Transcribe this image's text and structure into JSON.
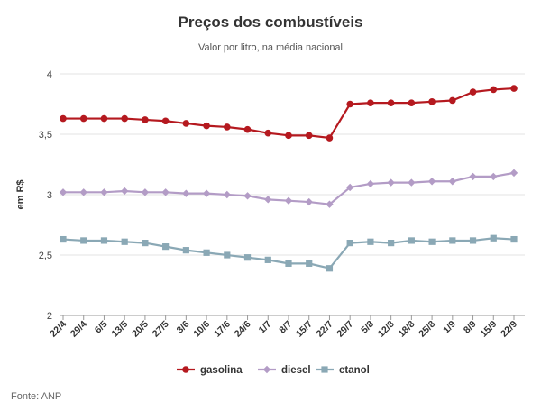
{
  "chart_data": {
    "type": "line",
    "title": "Preços dos combustíveis",
    "subtitle": "Valor por litro, na média nacional",
    "xlabel": "",
    "ylabel": "em R$",
    "ylim": [
      2,
      4
    ],
    "yticks": [
      "2",
      "2,5",
      "3",
      "3,5",
      "4"
    ],
    "ytick_values": [
      2,
      2.5,
      3,
      3.5,
      4
    ],
    "grid": true,
    "legend_position": "bottom",
    "categories": [
      "22/4",
      "29/4",
      "6/5",
      "13/5",
      "20/5",
      "27/5",
      "3/6",
      "10/6",
      "17/6",
      "24/6",
      "1/7",
      "8/7",
      "15/7",
      "22/7",
      "29/7",
      "5/8",
      "12/8",
      "18/8",
      "25/8",
      "1/9",
      "8/9",
      "15/9",
      "22/9"
    ],
    "series": [
      {
        "name": "gasolina",
        "color": "#b5191f",
        "marker": "circle",
        "values": [
          3.63,
          3.63,
          3.63,
          3.63,
          3.62,
          3.61,
          3.59,
          3.57,
          3.56,
          3.54,
          3.51,
          3.49,
          3.49,
          3.47,
          3.75,
          3.76,
          3.76,
          3.76,
          3.77,
          3.78,
          3.85,
          3.87,
          3.88
        ]
      },
      {
        "name": "diesel",
        "color": "#b39cc6",
        "marker": "diamond",
        "values": [
          3.02,
          3.02,
          3.02,
          3.03,
          3.02,
          3.02,
          3.01,
          3.01,
          3.0,
          2.99,
          2.96,
          2.95,
          2.94,
          2.92,
          3.06,
          3.09,
          3.1,
          3.1,
          3.11,
          3.11,
          3.15,
          3.15,
          3.18
        ]
      },
      {
        "name": "etanol",
        "color": "#8aa8b5",
        "marker": "square",
        "values": [
          2.63,
          2.62,
          2.62,
          2.61,
          2.6,
          2.57,
          2.54,
          2.52,
          2.5,
          2.48,
          2.46,
          2.43,
          2.43,
          2.39,
          2.6,
          2.61,
          2.6,
          2.62,
          2.61,
          2.62,
          2.62,
          2.64,
          2.63
        ]
      }
    ]
  },
  "source": "Fonte: ANP"
}
